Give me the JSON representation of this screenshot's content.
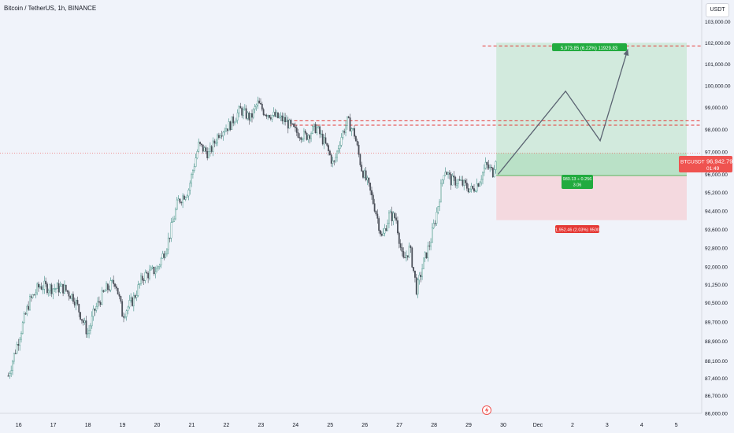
{
  "header": {
    "title": "Bitcoin / TetherUS, 1h, BINANCE",
    "currency": "USDT"
  },
  "price_tag": {
    "symbol": "BTCUSDT",
    "price": "96,942.79",
    "countdown": "01:49"
  },
  "position": {
    "target_label": "5,973.85 (6.22%) 11929.83",
    "stats_line1": "980.13 ÷ 0.256",
    "stats_line2": "3.06",
    "stop_label": "1,952.46 (2.03%) 9500"
  },
  "colors": {
    "up": "#26a69a",
    "down": "#ef5350",
    "candle": "#4a4e58",
    "target_zone": "#b9e2c5",
    "stop_zone": "#f5d0d5",
    "dashed": "#e53935",
    "projection": "#5b6472"
  },
  "icons": {
    "event": "lightning-icon"
  },
  "chart_data": {
    "type": "candlestick",
    "title": "Bitcoin / TetherUS, 1h, BINANCE",
    "x_ticks": [
      "16",
      "17",
      "18",
      "19",
      "20",
      "21",
      "22",
      "23",
      "24",
      "25",
      "26",
      "27",
      "28",
      "29",
      "30",
      "Dec",
      "2",
      "3",
      "4",
      "5"
    ],
    "x_tick_day_index": [
      0,
      1,
      2,
      3,
      4,
      5,
      6,
      7,
      8,
      9,
      10,
      11,
      12,
      13,
      14,
      15,
      16,
      17,
      18,
      19
    ],
    "y_ticks": [
      "86,000.00",
      "86,700.00",
      "87,400.00",
      "88,100.00",
      "88,900.00",
      "89,700.00",
      "90,500.00",
      "91,250.00",
      "92,000.00",
      "92,800.00",
      "93,600.00",
      "94,400.00",
      "95,200.00",
      "96,000.00",
      "97,000.00",
      "98,000.00",
      "99,000.00",
      "100,000.00",
      "101,000.00",
      "102,000.00",
      "103,000.00"
    ],
    "y_tick_values": [
      86000,
      86700,
      87400,
      88100,
      88900,
      89700,
      90500,
      91250,
      92000,
      92800,
      93600,
      94400,
      95200,
      96000,
      97000,
      98000,
      99000,
      100000,
      101000,
      102000,
      103000
    ],
    "scale": "log",
    "ylim": [
      86000,
      103800
    ],
    "close_path": [
      [
        -0.3,
        87500
      ],
      [
        0.0,
        89000
      ],
      [
        0.3,
        90500
      ],
      [
        0.6,
        91200
      ],
      [
        1.0,
        91100
      ],
      [
        1.3,
        91100
      ],
      [
        1.6,
        90700
      ],
      [
        2.0,
        89200
      ],
      [
        2.2,
        90200
      ],
      [
        2.5,
        91000
      ],
      [
        2.8,
        91400
      ],
      [
        3.0,
        90000
      ],
      [
        3.3,
        90600
      ],
      [
        3.6,
        91600
      ],
      [
        4.0,
        91900
      ],
      [
        4.3,
        93000
      ],
      [
        4.6,
        94800
      ],
      [
        4.9,
        95300
      ],
      [
        5.2,
        97300
      ],
      [
        5.5,
        96900
      ],
      [
        5.8,
        97900
      ],
      [
        6.1,
        98200
      ],
      [
        6.4,
        98900
      ],
      [
        6.7,
        98500
      ],
      [
        6.9,
        99200
      ],
      [
        7.1,
        98800
      ],
      [
        7.4,
        98600
      ],
      [
        7.7,
        98400
      ],
      [
        8.0,
        97900
      ],
      [
        8.3,
        97700
      ],
      [
        8.6,
        98100
      ],
      [
        8.9,
        97200
      ],
      [
        9.1,
        96400
      ],
      [
        9.3,
        97600
      ],
      [
        9.5,
        98400
      ],
      [
        9.7,
        97800
      ],
      [
        9.9,
        96300
      ],
      [
        10.1,
        95500
      ],
      [
        10.3,
        94500
      ],
      [
        10.5,
        93200
      ],
      [
        10.7,
        94200
      ],
      [
        10.9,
        94100
      ],
      [
        11.1,
        92200
      ],
      [
        11.3,
        92800
      ],
      [
        11.5,
        91000
      ],
      [
        11.7,
        92200
      ],
      [
        11.9,
        93100
      ],
      [
        12.1,
        94500
      ],
      [
        12.3,
        96300
      ],
      [
        12.5,
        95700
      ],
      [
        12.7,
        95700
      ],
      [
        12.9,
        95500
      ],
      [
        13.1,
        95300
      ],
      [
        13.3,
        95700
      ],
      [
        13.5,
        96400
      ],
      [
        13.7,
        96100
      ],
      [
        13.8,
        96900
      ]
    ],
    "current_price": 96942.79,
    "position": {
      "entry": 95950,
      "target": 102000,
      "stop": 94000,
      "day_range": [
        13.8,
        20.2
      ],
      "target_label": "5,973.85 (6.22%) 11929.83",
      "stop_label": "1,952.46 (2.03%) 9500"
    },
    "dashed_lines": [
      101850,
      98400,
      98200
    ],
    "projection_path": [
      [
        13.85,
        96000
      ],
      [
        15.8,
        99750
      ],
      [
        16.8,
        97500
      ],
      [
        17.6,
        101700
      ]
    ]
  }
}
